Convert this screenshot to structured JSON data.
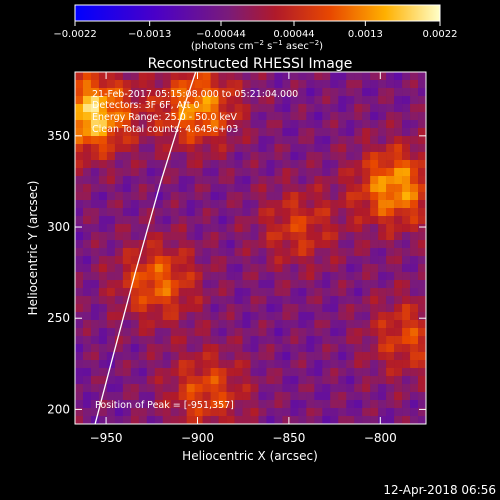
{
  "chart_data": {
    "type": "heatmap",
    "title": "Reconstructed RHESSI Image",
    "xlabel": "Heliocentric X (arcsec)",
    "ylabel": "Heliocentric Y (arcsec)",
    "xlim": [
      -967,
      -775
    ],
    "ylim": [
      192,
      385
    ],
    "x_ticks": [
      -950,
      -900,
      -850,
      -800
    ],
    "y_ticks": [
      200,
      250,
      300,
      350
    ],
    "x_tick_labels": [
      "−950",
      "−900",
      "−850",
      "−800"
    ],
    "y_tick_labels": [
      "200",
      "250",
      "300",
      "350"
    ],
    "colorbar": {
      "range": [
        -0.0022,
        0.0022
      ],
      "ticks": [
        -0.0022,
        -0.0013,
        -0.00044,
        0.00044,
        0.0013,
        0.0022
      ],
      "tick_labels": [
        "−0.0022",
        "−0.0013",
        "−0.00044",
        "0.00044",
        "0.0013",
        "0.0022"
      ],
      "unit_main": "(photons cm",
      "unit_sup1": "−2",
      "unit_mid1": " s",
      "unit_sup2": "−1",
      "unit_mid2": " asec",
      "unit_sup3": "−2",
      "unit_end": ")"
    },
    "annotations": [
      "21-Feb-2017 05:15:08.000 to 05:21:04.000",
      "Detectors: 3F 6F, Att 0",
      "Energy Range: 25.0 - 50.0 keV",
      "Clean     Total counts: 4.645e+03"
    ],
    "peak_label": "Position of Peak = [-951,357]",
    "peak_position": [
      -951,
      357
    ],
    "limb_line": [
      [
        -956,
        192
      ],
      [
        -946,
        230
      ],
      [
        -934,
        275
      ],
      [
        -920,
        325
      ],
      [
        -906,
        370
      ],
      [
        -901,
        385
      ]
    ],
    "sources": [
      {
        "x": -958,
        "y": 362,
        "intensity": 0.0022
      },
      {
        "x": -900,
        "y": 366,
        "intensity": 0.0017
      },
      {
        "x": -792,
        "y": 322,
        "intensity": 0.0018
      },
      {
        "x": -922,
        "y": 270,
        "intensity": 0.0014
      },
      {
        "x": -895,
        "y": 210,
        "intensity": 0.0012
      },
      {
        "x": -845,
        "y": 300,
        "intensity": 0.001
      },
      {
        "x": -785,
        "y": 240,
        "intensity": 0.0011
      }
    ]
  },
  "footer": {
    "timestamp": "12-Apr-2018 06:56"
  },
  "colors": {
    "background": "#000000",
    "text": "#ffffff",
    "limb": "#ffffff"
  }
}
